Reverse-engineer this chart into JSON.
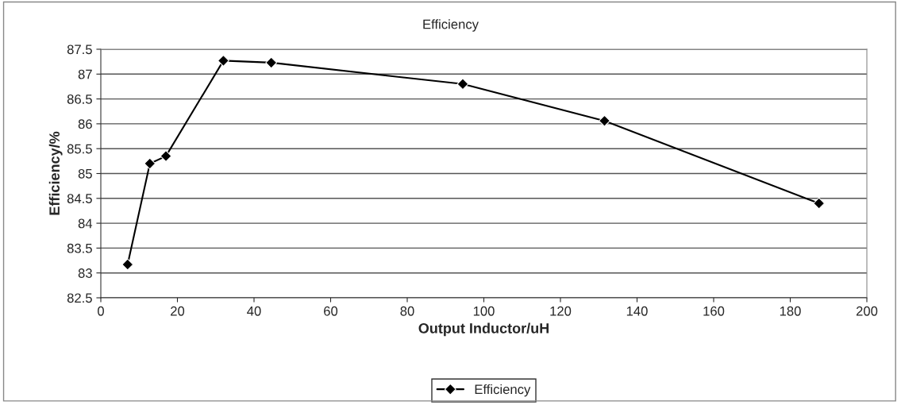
{
  "chart_data": {
    "type": "line",
    "title": "Efficiency",
    "xlabel": "Output Inductor/uH",
    "ylabel": "Efficiency/%",
    "x": [
      7,
      12.8,
      17,
      32,
      44.5,
      94.5,
      131.5,
      187.5
    ],
    "series": [
      {
        "name": "Efficiency",
        "color": "#000000",
        "values": [
          83.17,
          85.2,
          85.35,
          87.27,
          87.23,
          86.8,
          86.06,
          84.4
        ]
      }
    ],
    "xlim": [
      0,
      200
    ],
    "xticks": [
      0,
      20,
      40,
      60,
      80,
      100,
      120,
      140,
      160,
      180,
      200
    ],
    "ylim": [
      82.5,
      87.5
    ],
    "yticks": [
      82.5,
      83,
      83.5,
      84,
      84.5,
      85,
      85.5,
      86,
      86.5,
      87,
      87.5
    ],
    "grid": "y",
    "legend": "bottom",
    "marker": "diamond",
    "line_style": "solid"
  }
}
